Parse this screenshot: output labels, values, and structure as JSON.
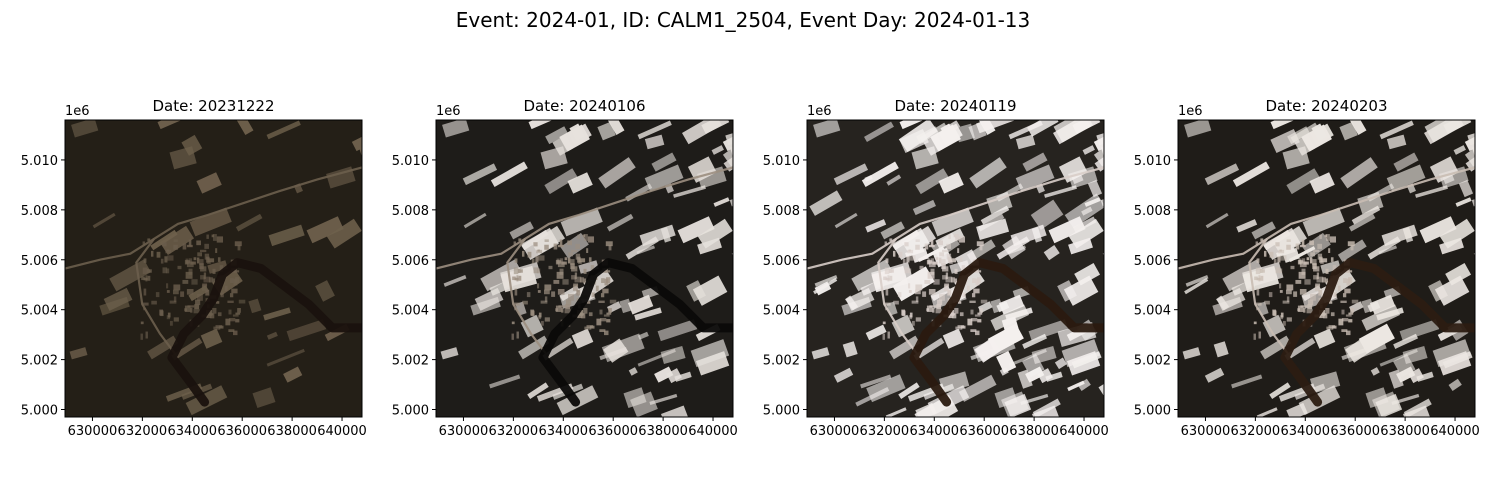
{
  "figure": {
    "suptitle": "Event: 2024-01, ID: CALM1_2504, Event Day: 2024-01-13"
  },
  "panels": [
    {
      "title": "Date: 20231222",
      "scene": "dark",
      "base_color": "#241f17",
      "snow_color": "#6e604c",
      "urban_color": "#6b5e4d",
      "river_color": "#1a120e",
      "snow_cover": 0.08
    },
    {
      "title": "Date: 20240106",
      "scene": "patchy-snow",
      "base_color": "#1e1c19",
      "snow_color": "#e6e1dc",
      "urban_color": "#9b8e80",
      "river_color": "#0b0908",
      "snow_cover": 0.3
    },
    {
      "title": "Date: 20240119",
      "scene": "heavy-snow",
      "base_color": "#26231f",
      "snow_color": "#f4f0ee",
      "urban_color": "#d8cdc8",
      "river_color": "#2a1a10",
      "snow_cover": 0.55
    },
    {
      "title": "Date: 20240203",
      "scene": "snow",
      "base_color": "#1f1c18",
      "snow_color": "#ece7e2",
      "urban_color": "#c9bdb3",
      "river_color": "#2c1c12",
      "snow_cover": 0.42
    }
  ],
  "axes": {
    "x_ticks": [
      "630000",
      "632000",
      "634000",
      "636000",
      "638000",
      "640000"
    ],
    "x_tick_values": [
      630000,
      632000,
      634000,
      636000,
      638000,
      640000
    ],
    "x_range": [
      628900,
      640800
    ],
    "y_ticks": [
      "5.000",
      "5.002",
      "5.004",
      "5.006",
      "5.008",
      "5.010"
    ],
    "y_tick_values": [
      5.0,
      5.002,
      5.004,
      5.006,
      5.008,
      5.01
    ],
    "y_range": [
      4.9997,
      5.0116
    ],
    "y_offset_label": "1e6"
  }
}
